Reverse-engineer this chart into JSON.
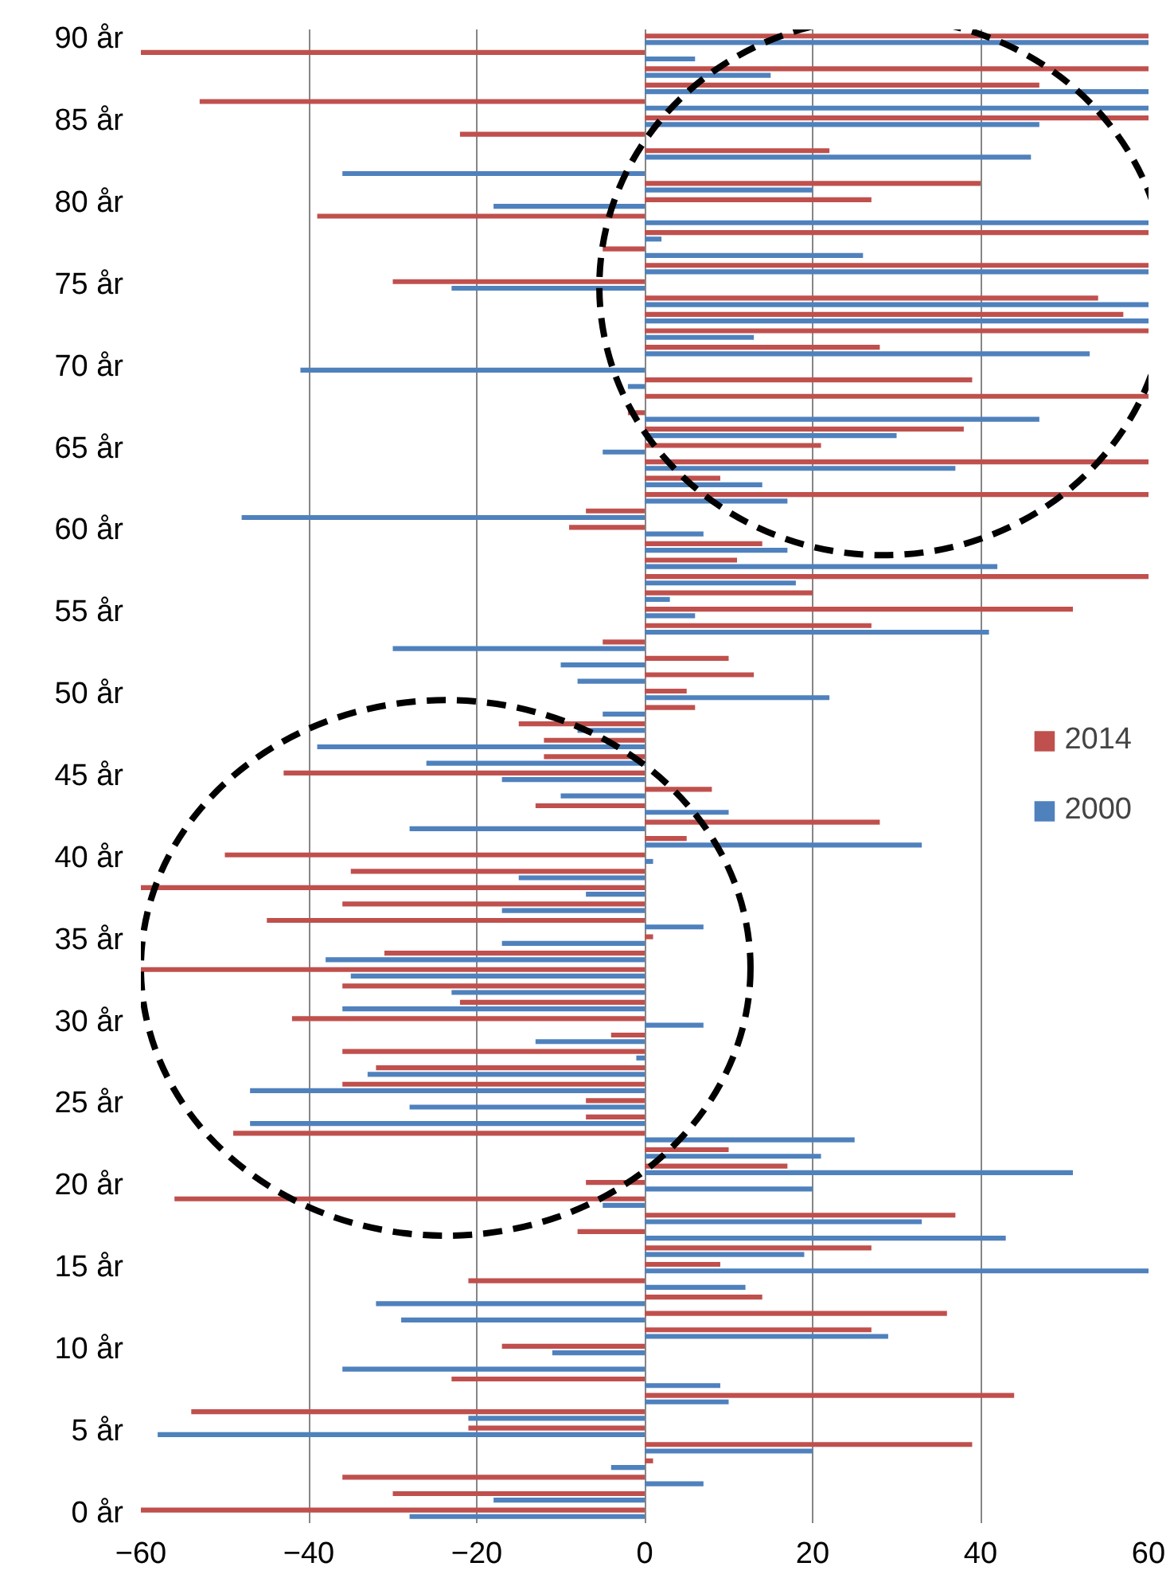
{
  "chart_data": {
    "type": "bar",
    "orientation": "horizontal",
    "categories": [
      "90 år",
      null,
      null,
      null,
      null,
      "85 år",
      null,
      null,
      null,
      null,
      "80 år",
      null,
      null,
      null,
      null,
      "75 år",
      null,
      null,
      null,
      null,
      "70 år",
      null,
      null,
      null,
      null,
      "65 år",
      null,
      null,
      null,
      null,
      "60 år",
      null,
      null,
      null,
      null,
      "55 år",
      null,
      null,
      null,
      null,
      "50 år",
      null,
      null,
      null,
      null,
      "45 år",
      null,
      null,
      null,
      null,
      "40 år",
      null,
      null,
      null,
      null,
      "35 år",
      null,
      null,
      null,
      null,
      "30 år",
      null,
      null,
      null,
      null,
      "25 år",
      null,
      null,
      null,
      null,
      "20 år",
      null,
      null,
      null,
      null,
      "15 år",
      null,
      null,
      null,
      null,
      "10 år",
      null,
      null,
      null,
      null,
      "5 år",
      null,
      null,
      null,
      null,
      "0 år"
    ],
    "series": [
      {
        "name": "2014",
        "color": "#c0504d",
        "values": [
          60,
          -60,
          60,
          47,
          -53,
          60,
          -22,
          22,
          0,
          40,
          27,
          -39,
          60,
          -5,
          60,
          -30,
          54,
          57,
          60,
          28,
          0,
          39,
          60,
          -2,
          38,
          21,
          60,
          9,
          60,
          -7,
          -9,
          14,
          11,
          60,
          20,
          51,
          27,
          -5,
          10,
          13,
          5,
          6,
          -15,
          -12,
          -12,
          -43,
          8,
          -13,
          28,
          5,
          -50,
          -35,
          -60,
          -36,
          -45,
          1,
          -31,
          -60,
          -36,
          -22,
          -42,
          -4,
          -36,
          -32,
          -36,
          -7,
          -7,
          -49,
          10,
          17,
          -7,
          -56,
          37,
          -8,
          27,
          9,
          -21,
          14,
          36,
          27,
          -17,
          0,
          -23,
          44,
          -54,
          -21,
          39,
          1,
          -36,
          -30,
          -60
        ]
      },
      {
        "name": "2000",
        "color": "#4f81bd",
        "values": [
          60,
          6,
          15,
          60,
          60,
          47,
          0,
          46,
          -36,
          20,
          -18,
          60,
          2,
          26,
          60,
          -23,
          60,
          60,
          13,
          53,
          -41,
          -2,
          0,
          47,
          30,
          -5,
          37,
          14,
          17,
          -48,
          7,
          17,
          42,
          18,
          3,
          6,
          41,
          -30,
          -10,
          -8,
          22,
          -5,
          -8,
          -39,
          -26,
          -17,
          -10,
          10,
          -28,
          33,
          1,
          -15,
          -7,
          -17,
          7,
          -17,
          -38,
          -35,
          -23,
          -36,
          7,
          -13,
          -1,
          -33,
          -47,
          -28,
          -47,
          25,
          21,
          51,
          20,
          -5,
          33,
          43,
          19,
          60,
          12,
          -32,
          -29,
          29,
          -11,
          -36,
          9,
          10,
          -21,
          -58,
          20,
          -4,
          7,
          -18,
          -28
        ]
      }
    ],
    "xlim": [
      -60,
      60
    ],
    "xticks": [
      -60,
      -40,
      -20,
      0,
      20,
      40,
      60
    ],
    "grid": "x",
    "legend": "right"
  }
}
